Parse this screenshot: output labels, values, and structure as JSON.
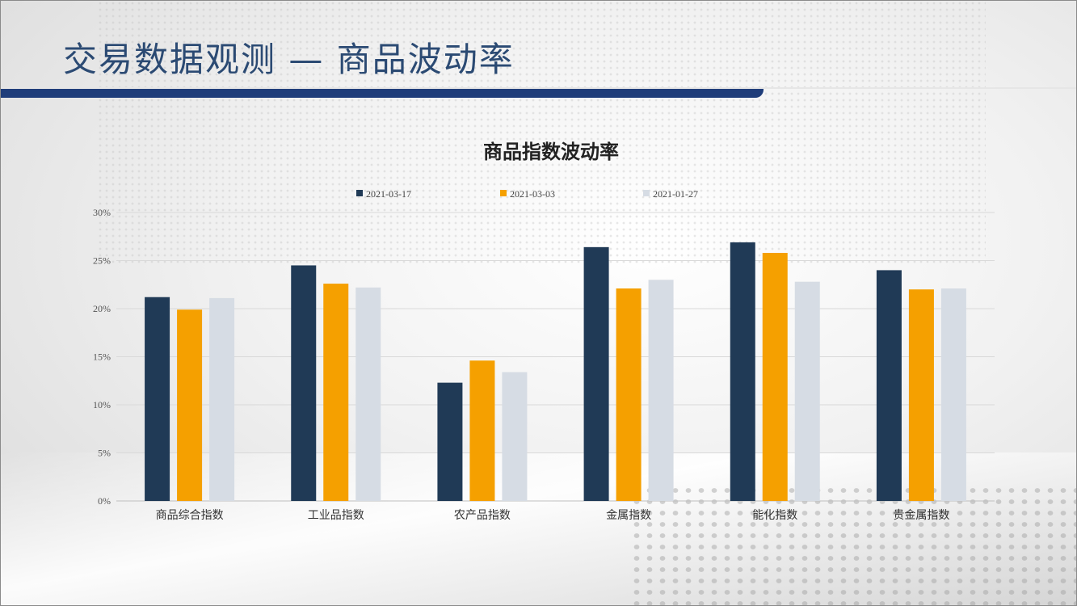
{
  "slide": {
    "title": "交易数据观测 — 商品波动率",
    "accent_color": "#1f3d7a"
  },
  "chart_data": {
    "type": "bar",
    "title": "商品指数波动率",
    "categories": [
      "商品综合指数",
      "工业品指数",
      "农产品指数",
      "金属指数",
      "能化指数",
      "贵金属指数"
    ],
    "series": [
      {
        "name": "2021-03-17",
        "color": "#203a56",
        "values": [
          21.2,
          24.5,
          12.3,
          26.4,
          26.9,
          24.0
        ]
      },
      {
        "name": "2021-03-03",
        "color": "#f5a000",
        "values": [
          19.9,
          22.6,
          14.6,
          22.1,
          25.8,
          22.0
        ]
      },
      {
        "name": "2021-01-27",
        "color": "#d6dce4",
        "values": [
          21.1,
          22.2,
          13.4,
          23.0,
          22.8,
          22.1
        ]
      }
    ],
    "yticks": [
      "0%",
      "5%",
      "10%",
      "15%",
      "20%",
      "25%",
      "30%"
    ],
    "ylim": [
      0,
      30
    ],
    "ystep": 5,
    "legend_position": "top",
    "grid": true
  }
}
